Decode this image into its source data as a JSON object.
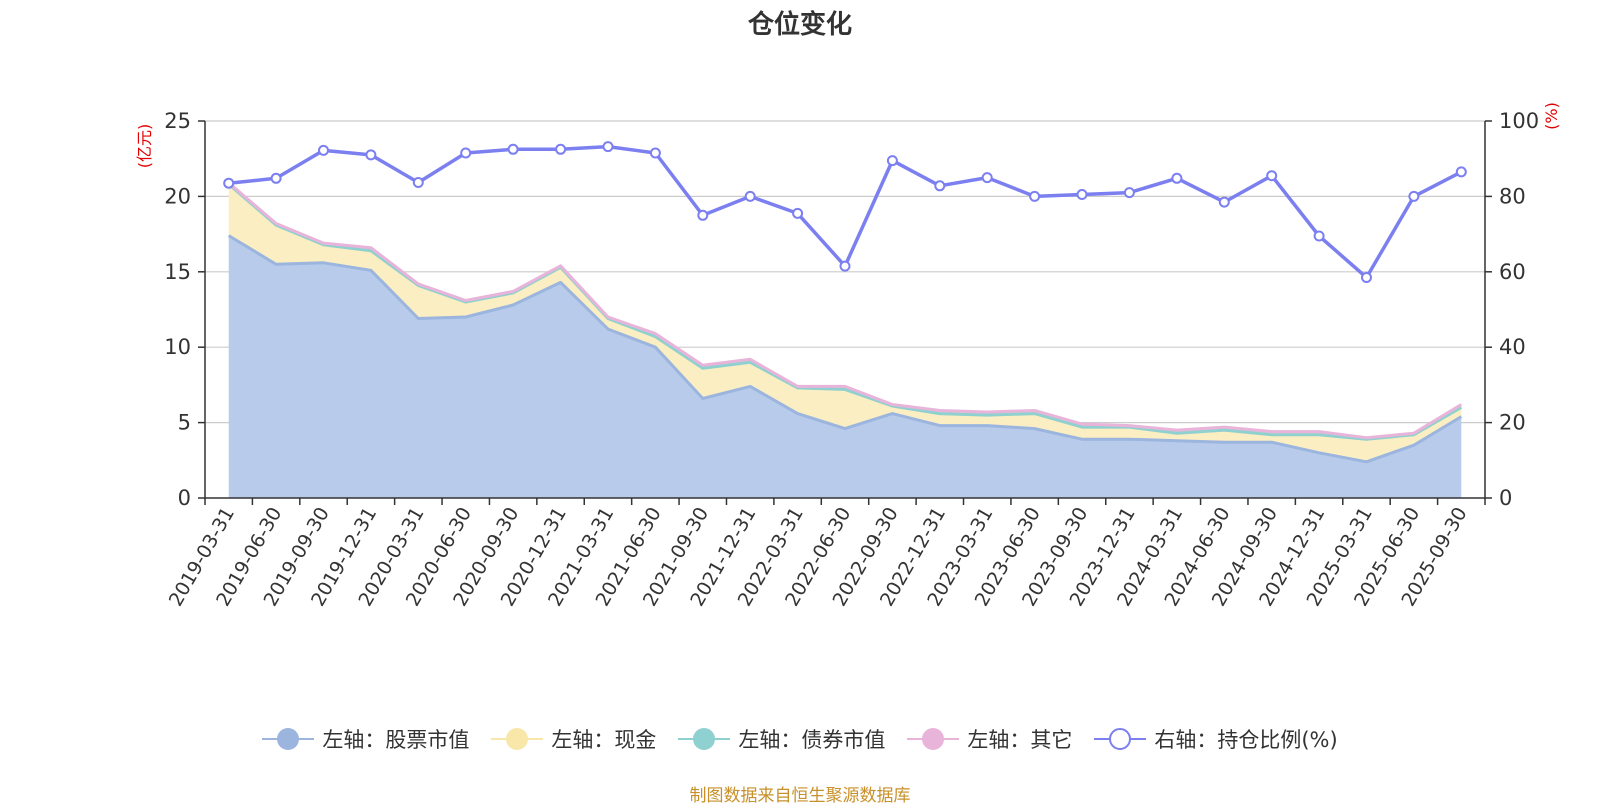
{
  "title": "仓位变化",
  "source_note": "制图数据来自恒生聚源数据库",
  "colors": {
    "stock": "#9bb5df",
    "stock_fill": "#b8cbea",
    "cash": "#f8e7a8",
    "cash_fill": "#faeec2",
    "bond": "#8fd0d0",
    "other": "#e8b4da",
    "ratio": "#7b7ff0",
    "grid": "#cccccc",
    "axis": "#333333",
    "unit": "#e00000"
  },
  "legend": [
    {
      "key": "stock",
      "label": "左轴：股票市值",
      "icon": "filled-circle-icon"
    },
    {
      "key": "cash",
      "label": "左轴：现金",
      "icon": "filled-circle-icon"
    },
    {
      "key": "bond",
      "label": "左轴：债券市值",
      "icon": "filled-circle-icon"
    },
    {
      "key": "other",
      "label": "左轴：其它",
      "icon": "filled-circle-icon"
    },
    {
      "key": "ratio",
      "label": "右轴：持仓比例(%)",
      "icon": "hollow-circle-icon"
    }
  ],
  "chart_data": {
    "type": "area",
    "title": "仓位变化",
    "left_axis": {
      "unit_label": "(亿元)",
      "ylim": [
        0,
        25
      ],
      "ticks": [
        0,
        5,
        10,
        15,
        20,
        25
      ],
      "tick_labels": [
        "0",
        "5",
        "10",
        "15",
        "20",
        "25"
      ]
    },
    "right_axis": {
      "unit_label": "(%)",
      "ylim": [
        0,
        100
      ],
      "ticks": [
        0,
        20,
        40,
        60,
        80,
        100
      ],
      "tick_labels": [
        "0",
        "20",
        "40",
        "60",
        "80",
        "100"
      ]
    },
    "categories": [
      "2019-03-31",
      "2019-06-30",
      "2019-09-30",
      "2019-12-31",
      "2020-03-31",
      "2020-06-30",
      "2020-09-30",
      "2020-12-31",
      "2021-03-31",
      "2021-06-30",
      "2021-09-30",
      "2021-12-31",
      "2022-03-31",
      "2022-06-30",
      "2022-09-30",
      "2022-12-31",
      "2023-03-31",
      "2023-06-30",
      "2023-09-30",
      "2023-12-31",
      "2024-03-31",
      "2024-06-30",
      "2024-09-30",
      "2024-12-31",
      "2025-03-31",
      "2025-06-30",
      "2025-09-30"
    ],
    "series": [
      {
        "name": "左轴：股票市值",
        "axis": "left",
        "stacked": true,
        "values": [
          17.4,
          15.5,
          15.6,
          15.1,
          11.9,
          12.0,
          12.8,
          14.3,
          11.2,
          10.0,
          6.6,
          7.4,
          5.6,
          4.6,
          5.6,
          4.8,
          4.8,
          4.6,
          3.9,
          3.9,
          3.8,
          3.7,
          3.7,
          3.0,
          2.4,
          3.5,
          5.4
        ]
      },
      {
        "name": "左轴：现金",
        "axis": "left",
        "stacked": true,
        "values": [
          3.4,
          2.6,
          1.2,
          1.3,
          2.2,
          1.0,
          0.8,
          1.0,
          0.7,
          0.7,
          2.0,
          1.6,
          1.7,
          2.6,
          0.5,
          0.8,
          0.7,
          1.0,
          0.8,
          0.8,
          0.5,
          0.8,
          0.5,
          1.2,
          1.5,
          0.7,
          0.6
        ]
      },
      {
        "name": "左轴：债券市值",
        "axis": "left",
        "stacked": true,
        "values": [
          0,
          0,
          0,
          0,
          0,
          0,
          0,
          0,
          0,
          0,
          0,
          0,
          0,
          0,
          0,
          0,
          0,
          0,
          0,
          0,
          0,
          0,
          0,
          0,
          0,
          0,
          0
        ]
      },
      {
        "name": "左轴：其它",
        "axis": "left",
        "stacked": true,
        "values": [
          0.1,
          0.1,
          0.1,
          0.2,
          0.1,
          0.1,
          0.1,
          0.1,
          0.1,
          0.2,
          0.2,
          0.2,
          0.1,
          0.2,
          0.1,
          0.2,
          0.2,
          0.2,
          0.2,
          0.1,
          0.2,
          0.2,
          0.2,
          0.2,
          0.1,
          0.1,
          0.2
        ]
      },
      {
        "name": "右轴：持仓比例(%)",
        "axis": "right",
        "type": "line",
        "values": [
          83.5,
          84.8,
          92.2,
          91.0,
          83.7,
          91.5,
          92.5,
          92.5,
          93.2,
          91.5,
          75.0,
          80.0,
          75.5,
          61.5,
          89.5,
          82.8,
          85.0,
          80.0,
          80.5,
          81.0,
          84.8,
          78.5,
          85.5,
          69.5,
          58.5,
          80.0,
          86.5
        ]
      }
    ]
  }
}
